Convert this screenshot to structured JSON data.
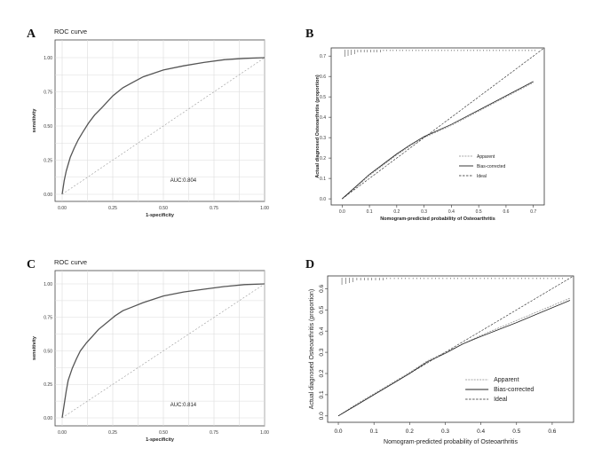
{
  "chart_data": [
    {
      "panel": "A",
      "type": "line",
      "title": "ROC curve",
      "xlabel": "1-specificity",
      "ylabel": "sensitivity",
      "xlim": [
        0,
        1
      ],
      "ylim": [
        0,
        1
      ],
      "xticks": [
        "0.00",
        "0.25",
        "0.50",
        "0.75",
        "1.00"
      ],
      "yticks": [
        "0.00",
        "0.25",
        "0.50",
        "0.75",
        "1.00"
      ],
      "grid": true,
      "annotation": "AUC:0.804",
      "series": [
        {
          "x": [
            0,
            0.01,
            0.02,
            0.04,
            0.06,
            0.08,
            0.1,
            0.13,
            0.16,
            0.2,
            0.25,
            0.3,
            0.35,
            0.4,
            0.5,
            0.6,
            0.7,
            0.8,
            0.9,
            1.0
          ],
          "y": [
            0,
            0.1,
            0.17,
            0.27,
            0.34,
            0.4,
            0.45,
            0.52,
            0.58,
            0.64,
            0.72,
            0.78,
            0.82,
            0.86,
            0.91,
            0.94,
            0.965,
            0.985,
            0.995,
            1.0
          ]
        },
        {
          "x": [
            0,
            1
          ],
          "y": [
            0,
            1
          ]
        }
      ]
    },
    {
      "panel": "B",
      "type": "line",
      "xlabel": "Nomogram-predicted probability of Osteoarthritis",
      "ylabel": "Actual diagnosed Osteoarthritis (proportion)",
      "xlim": [
        -0.04,
        0.74
      ],
      "ylim": [
        -0.03,
        0.74
      ],
      "xticks": [
        "0.0",
        "0.1",
        "0.2",
        "0.3",
        "0.4",
        "0.5",
        "0.6",
        "0.7"
      ],
      "yticks": [
        "0.0",
        "0.1",
        "0.2",
        "0.3",
        "0.4",
        "0.5",
        "0.6",
        "0.7"
      ],
      "grid": false,
      "legend_position": "bottom-right",
      "series": [
        {
          "name": "Apparent",
          "x": [
            0,
            0.05,
            0.1,
            0.15,
            0.2,
            0.25,
            0.3,
            0.35,
            0.4,
            0.5,
            0.6,
            0.7
          ],
          "y": [
            0,
            0.055,
            0.115,
            0.165,
            0.215,
            0.26,
            0.3,
            0.33,
            0.36,
            0.43,
            0.5,
            0.57
          ]
        },
        {
          "name": "Bias-corrected",
          "x": [
            0,
            0.05,
            0.1,
            0.15,
            0.2,
            0.25,
            0.3,
            0.35,
            0.4,
            0.5,
            0.6,
            0.7
          ],
          "y": [
            0,
            0.06,
            0.12,
            0.17,
            0.22,
            0.265,
            0.305,
            0.335,
            0.365,
            0.435,
            0.505,
            0.575
          ]
        },
        {
          "name": "Ideal",
          "x": [
            0,
            0.74
          ],
          "y": [
            0,
            0.74
          ]
        }
      ]
    },
    {
      "panel": "C",
      "type": "line",
      "title": "ROC curve",
      "xlabel": "1-specificity",
      "ylabel": "sensitivity",
      "xlim": [
        0,
        1
      ],
      "ylim": [
        0,
        1
      ],
      "xticks": [
        "0.00",
        "0.25",
        "0.50",
        "0.75",
        "1.00"
      ],
      "yticks": [
        "0.00",
        "0.25",
        "0.50",
        "0.75",
        "1.00"
      ],
      "grid": true,
      "annotation": "AUC:0.814",
      "series": [
        {
          "x": [
            0,
            0.01,
            0.02,
            0.03,
            0.05,
            0.07,
            0.09,
            0.12,
            0.15,
            0.18,
            0.22,
            0.26,
            0.3,
            0.35,
            0.4,
            0.5,
            0.6,
            0.7,
            0.8,
            0.9,
            1.0
          ],
          "y": [
            0,
            0.1,
            0.2,
            0.28,
            0.37,
            0.44,
            0.5,
            0.56,
            0.61,
            0.66,
            0.71,
            0.76,
            0.8,
            0.83,
            0.86,
            0.91,
            0.94,
            0.96,
            0.98,
            0.995,
            1.0
          ]
        },
        {
          "x": [
            0,
            1
          ],
          "y": [
            0,
            1
          ]
        }
      ]
    },
    {
      "panel": "D",
      "type": "line",
      "xlabel": "Nomogram-predicted probability of Osteoarthritis",
      "ylabel": "Actual diagnosed Osteoarthritis (proportion)",
      "xlim": [
        -0.03,
        0.66
      ],
      "ylim": [
        -0.03,
        0.66
      ],
      "xticks": [
        "0.0",
        "0.1",
        "0.2",
        "0.3",
        "0.4",
        "0.5",
        "0.6"
      ],
      "yticks": [
        "0.0",
        "0.1",
        "0.2",
        "0.3",
        "0.4",
        "0.5",
        "0.6"
      ],
      "grid": false,
      "legend_position": "bottom-right",
      "series": [
        {
          "name": "Apparent",
          "x": [
            0,
            0.05,
            0.1,
            0.15,
            0.2,
            0.25,
            0.3,
            0.35,
            0.4,
            0.5,
            0.6,
            0.65
          ],
          "y": [
            0,
            0.055,
            0.105,
            0.155,
            0.205,
            0.26,
            0.3,
            0.34,
            0.38,
            0.45,
            0.52,
            0.555
          ]
        },
        {
          "name": "Bias-corrected",
          "x": [
            0,
            0.05,
            0.1,
            0.15,
            0.2,
            0.25,
            0.3,
            0.35,
            0.4,
            0.5,
            0.6,
            0.65
          ],
          "y": [
            0,
            0.05,
            0.1,
            0.15,
            0.2,
            0.255,
            0.295,
            0.34,
            0.375,
            0.44,
            0.51,
            0.545
          ]
        },
        {
          "name": "Ideal",
          "x": [
            0,
            0.66
          ],
          "y": [
            0,
            0.66
          ]
        }
      ]
    }
  ]
}
